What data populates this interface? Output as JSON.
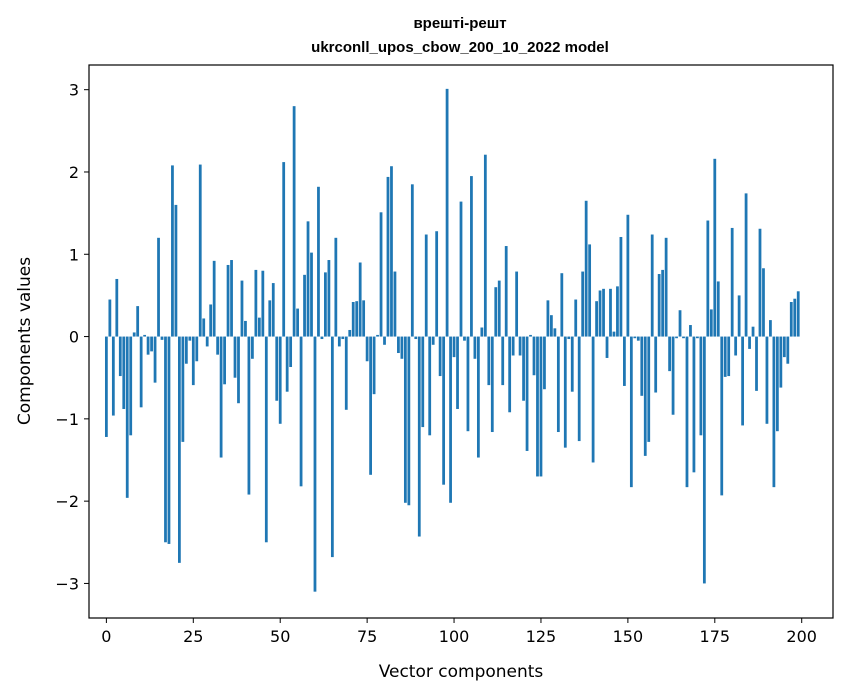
{
  "chart_data": {
    "type": "bar",
    "title": "врешті-решт",
    "subtitle": "ukrconll_upos_cbow_200_10_2022 model",
    "xlabel": "Vector components",
    "ylabel": "Components values",
    "xlim": [
      -5,
      209
    ],
    "ylim": [
      -3.42,
      3.3
    ],
    "xticks": [
      0,
      25,
      50,
      75,
      100,
      125,
      150,
      175,
      200
    ],
    "yticks": [
      -3,
      -2,
      -1,
      0,
      1,
      2,
      3
    ],
    "xtick_labels": [
      "0",
      "25",
      "50",
      "75",
      "100",
      "125",
      "150",
      "175",
      "200"
    ],
    "ytick_labels": [
      "−3",
      "−2",
      "−1",
      "0",
      "1",
      "2",
      "3"
    ],
    "bar_color": "#1f77b4",
    "values": [
      -1.22,
      0.45,
      -0.96,
      0.7,
      -0.48,
      -0.88,
      -1.96,
      -1.2,
      0.05,
      0.37,
      -0.86,
      0.02,
      -0.22,
      -0.18,
      -0.56,
      1.2,
      -0.04,
      -2.5,
      -2.52,
      2.08,
      1.6,
      -2.75,
      -1.28,
      -0.33,
      -0.05,
      -0.59,
      -0.3,
      2.09,
      0.22,
      -0.12,
      0.39,
      0.92,
      -0.22,
      -1.47,
      -0.58,
      0.87,
      0.93,
      -0.5,
      -0.81,
      0.68,
      0.19,
      -1.92,
      -0.27,
      0.81,
      0.23,
      0.8,
      -2.5,
      0.44,
      0.65,
      -0.78,
      -1.06,
      2.12,
      -0.67,
      -0.37,
      2.8,
      0.34,
      -1.82,
      0.75,
      1.4,
      1.02,
      -3.1,
      1.82,
      -0.03,
      0.78,
      0.93,
      -2.68,
      1.2,
      -0.12,
      -0.03,
      -0.89,
      0.08,
      0.42,
      0.43,
      0.9,
      0.44,
      -0.3,
      -1.68,
      -0.7,
      0.02,
      1.51,
      -0.1,
      1.94,
      2.07,
      0.79,
      -0.2,
      -0.27,
      -2.02,
      -2.05,
      1.85,
      -0.03,
      -2.43,
      -1.1,
      1.24,
      -1.2,
      -0.1,
      1.28,
      -0.48,
      -1.8,
      3.01,
      -2.02,
      -0.25,
      -0.88,
      1.64,
      -0.05,
      -1.15,
      1.95,
      -0.27,
      -1.47,
      0.11,
      2.21,
      -0.59,
      -1.16,
      0.6,
      0.68,
      -0.59,
      1.1,
      -0.92,
      -0.23,
      0.79,
      -0.23,
      -0.78,
      -1.39,
      0.02,
      -0.47,
      -1.7,
      -1.7,
      -0.64,
      0.44,
      0.26,
      0.1,
      -1.16,
      0.77,
      -1.35,
      -0.03,
      -0.67,
      0.45,
      -1.27,
      0.79,
      1.65,
      1.12,
      -1.53,
      0.43,
      0.56,
      0.58,
      -0.26,
      0.58,
      0.06,
      0.61,
      1.21,
      -0.6,
      1.48,
      -1.83,
      -0.02,
      -0.05,
      -0.72,
      -1.45,
      -1.28,
      1.24,
      -0.68,
      0.76,
      0.81,
      1.2,
      -0.42,
      -0.95,
      -0.02,
      0.32,
      -0.02,
      -1.83,
      0.14,
      -1.65,
      -0.02,
      -1.2,
      -3.0,
      1.41,
      0.33,
      2.16,
      0.67,
      -1.93,
      -0.49,
      -0.48,
      1.32,
      -0.23,
      0.5,
      -1.08,
      1.74,
      -0.15,
      0.12,
      -0.66,
      1.31,
      0.83,
      -1.06,
      0.2,
      -1.83,
      -1.15,
      -0.62,
      -0.25,
      -0.33,
      0.42,
      0.46,
      0.55
    ]
  }
}
